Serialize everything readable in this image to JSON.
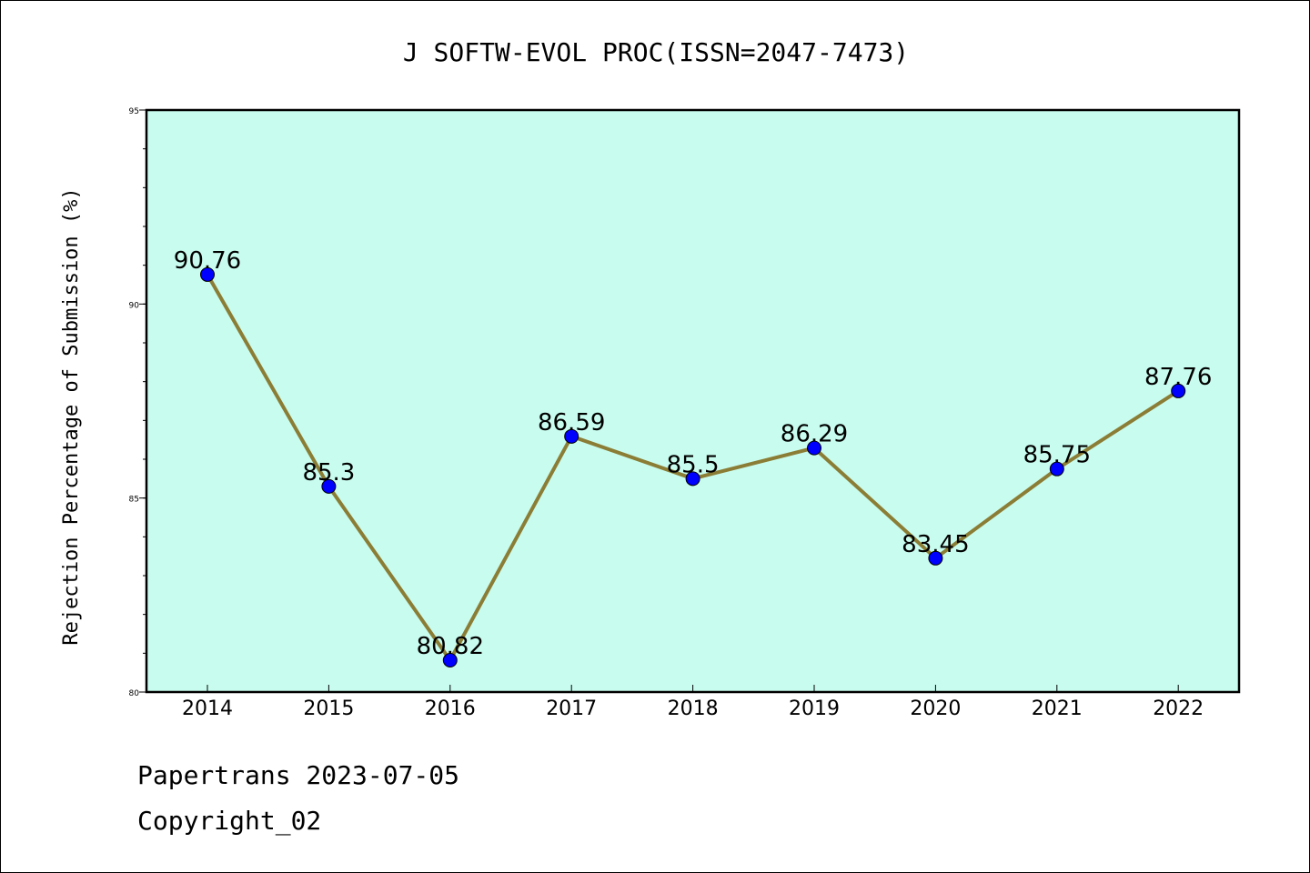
{
  "chart_data": {
    "type": "line",
    "title": "J SOFTW-EVOL PROC(ISSN=2047-7473)",
    "xlabel": "",
    "ylabel": "Rejection Percentage of Submission (%)",
    "categories": [
      "2014",
      "2015",
      "2016",
      "2017",
      "2018",
      "2019",
      "2020",
      "2021",
      "2022"
    ],
    "series": [
      {
        "values": [
          90.76,
          85.3,
          80.82,
          86.59,
          85.5,
          86.29,
          83.45,
          85.75,
          87.76
        ],
        "data_labels": [
          "90.76",
          "85.3",
          "80.82",
          "86.59",
          "85.5",
          "86.29",
          "83.45",
          "85.75",
          "87.76"
        ]
      }
    ],
    "ylim": [
      80,
      95
    ],
    "y_major_ticks": [
      "80",
      "85",
      "90",
      "95"
    ],
    "y_minor_step": 1,
    "grid": false,
    "legend": "none",
    "colors": {
      "plot_background": "#c8fcee",
      "line": "#8b7d35",
      "marker": "#0000ff",
      "axis": "#000000"
    }
  },
  "footer": {
    "line1": "Papertrans 2023-07-05",
    "line2": "Copyright_02"
  }
}
